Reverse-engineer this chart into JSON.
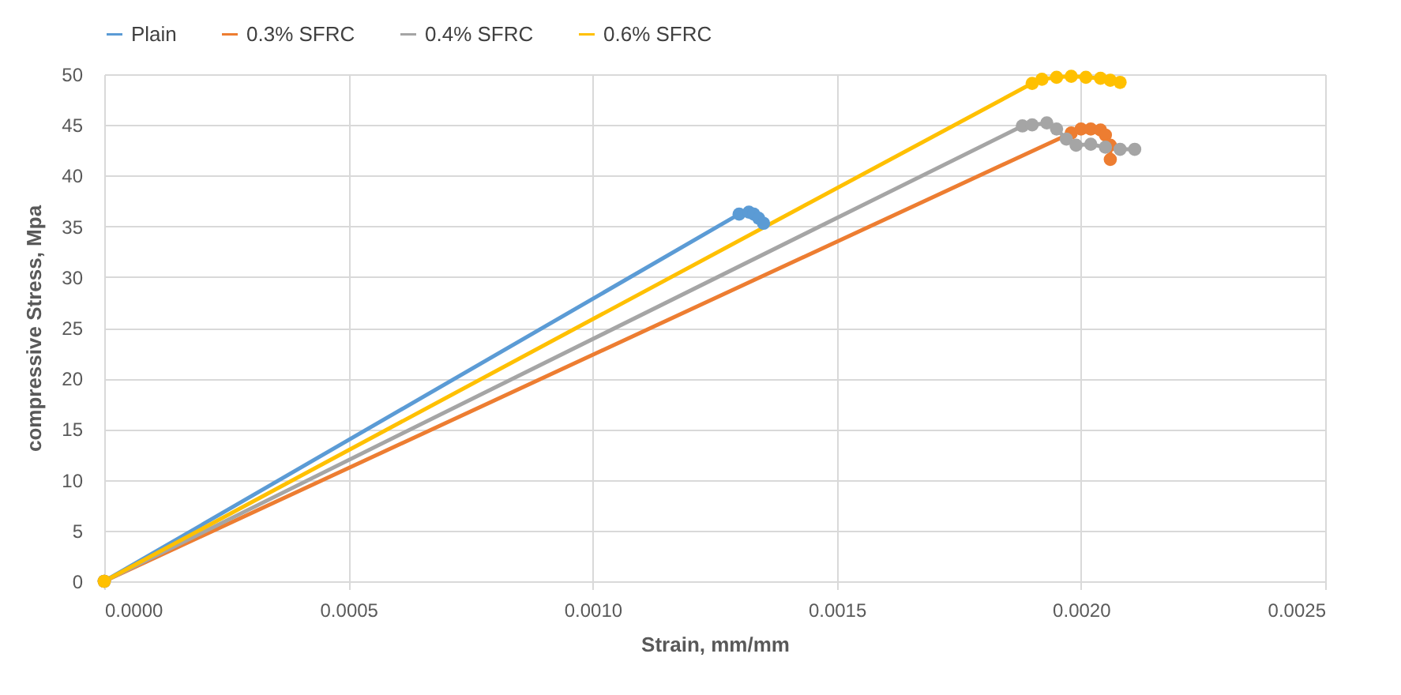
{
  "chart_data": {
    "type": "line",
    "xlabel": "Strain, mm/mm",
    "ylabel": "compressive Stress, Mpa",
    "xlim": [
      0,
      0.0025
    ],
    "ylim": [
      0,
      50
    ],
    "xticks": [
      {
        "value": 0,
        "label": "0.0000"
      },
      {
        "value": 0.0005,
        "label": "0.0005"
      },
      {
        "value": 0.001,
        "label": "0.0010"
      },
      {
        "value": 0.0015,
        "label": "0.0015"
      },
      {
        "value": 0.002,
        "label": "0.0020"
      },
      {
        "value": 0.0025,
        "label": "0.0025"
      }
    ],
    "yticks": [
      0,
      5,
      10,
      15,
      20,
      25,
      30,
      35,
      40,
      45,
      50
    ],
    "grid": true,
    "legend": "top",
    "marker": "circle",
    "line_style": "solid",
    "series": [
      {
        "name": "Plain",
        "color": "#5b9bd5",
        "x": [
          0,
          0.0013,
          0.00132,
          0.00133,
          0.00134,
          0.00135
        ],
        "values": [
          0,
          36.2,
          36.4,
          36.2,
          35.8,
          35.3
        ]
      },
      {
        "name": "0.3% SFRC",
        "color": "#ed7d31",
        "x": [
          0,
          0.00198,
          0.002,
          0.00202,
          0.00204,
          0.00205,
          0.00206,
          0.00206
        ],
        "values": [
          0,
          44.2,
          44.6,
          44.6,
          44.5,
          44.0,
          43.0,
          41.6
        ]
      },
      {
        "name": "0.4% SFRC",
        "color": "#a5a5a5",
        "x": [
          0,
          0.00188,
          0.0019,
          0.00193,
          0.00195,
          0.00197,
          0.00199,
          0.00202,
          0.00205,
          0.00208,
          0.00211
        ],
        "values": [
          0,
          44.9,
          45.0,
          45.2,
          44.6,
          43.6,
          43.0,
          43.1,
          42.8,
          42.6,
          42.6
        ]
      },
      {
        "name": "0.6% SFRC",
        "color": "#ffc000",
        "x": [
          0,
          0.0019,
          0.00192,
          0.00195,
          0.00198,
          0.00201,
          0.00204,
          0.00206,
          0.00208
        ],
        "values": [
          0,
          49.1,
          49.5,
          49.7,
          49.8,
          49.7,
          49.6,
          49.4,
          49.2
        ]
      }
    ]
  }
}
